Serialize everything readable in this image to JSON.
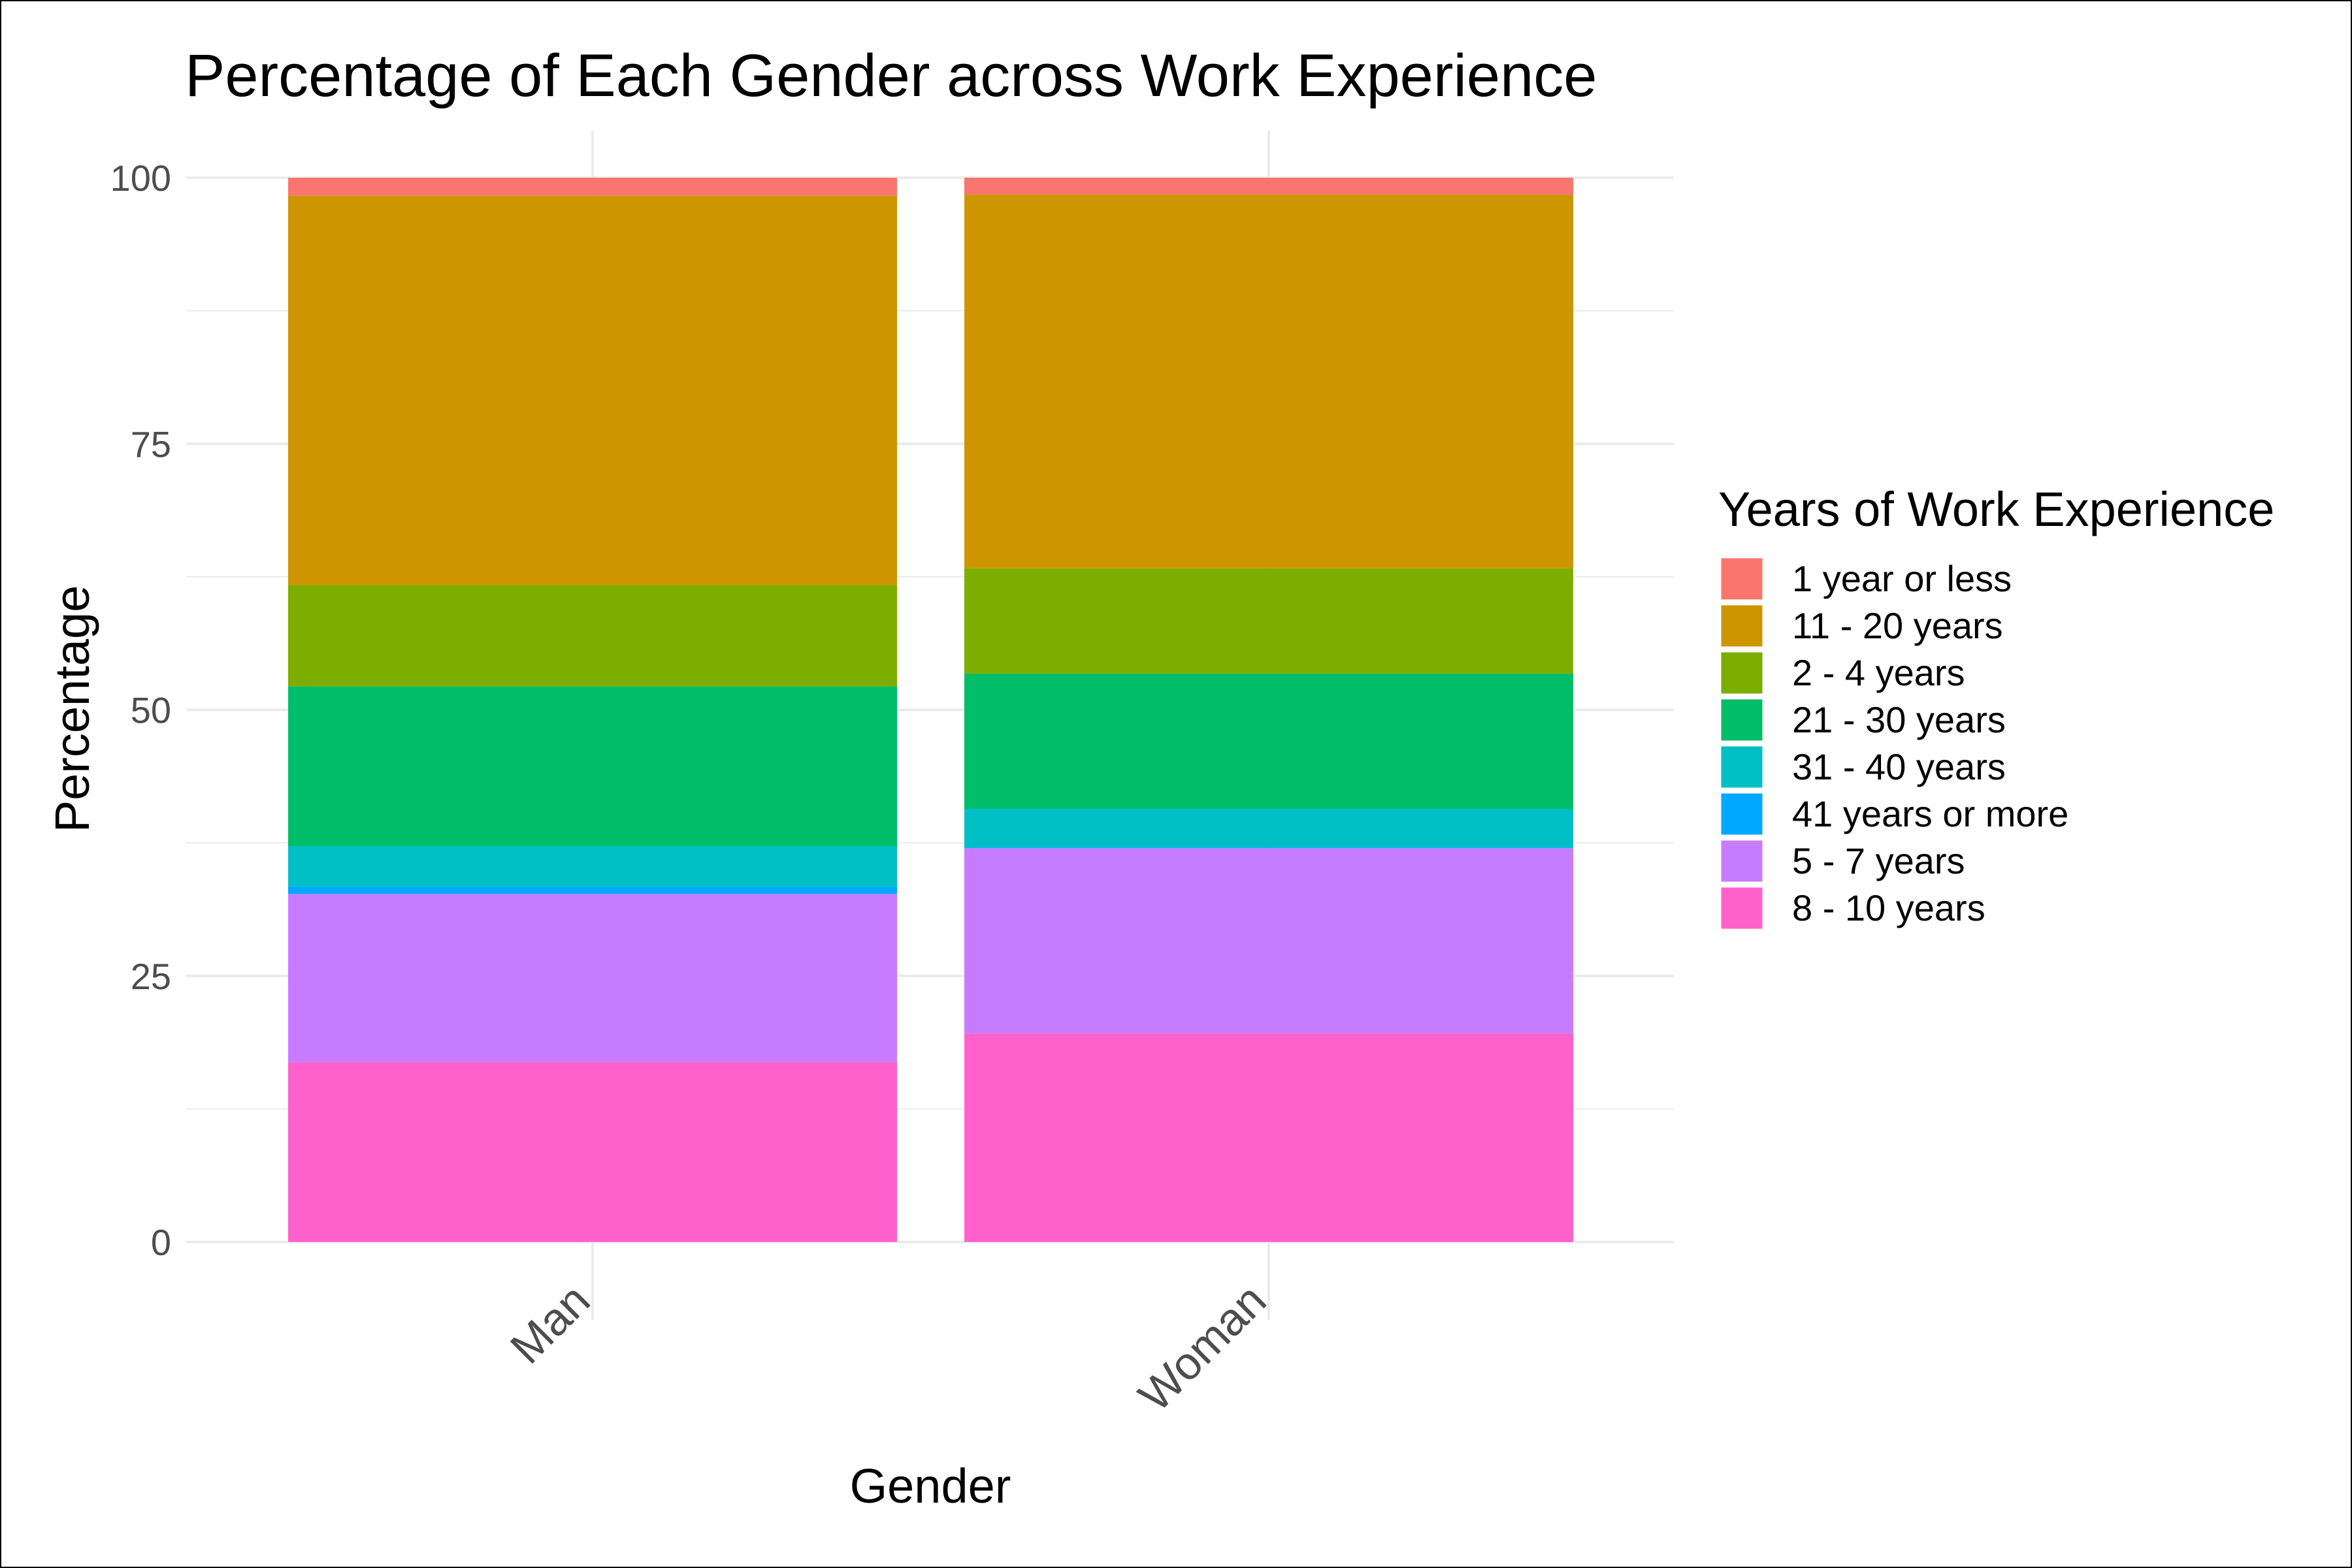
{
  "chart_data": {
    "type": "bar",
    "stacked": true,
    "title": "Percentage of Each Gender across Work Experience",
    "xlabel": "Gender",
    "ylabel": "Percentage",
    "ylim": [
      0,
      100
    ],
    "yticks": [
      0,
      25,
      50,
      75,
      100
    ],
    "grid": true,
    "legend_position": "right",
    "legend_title": "Years of Work Experience",
    "categories": [
      "Man",
      "Woman"
    ],
    "series": [
      {
        "name": "8 - 10 years",
        "color": "#FF61CC",
        "values": [
          16.9,
          19.6
        ]
      },
      {
        "name": "5 - 7 years",
        "color": "#C77CFF",
        "values": [
          15.8,
          17.4
        ]
      },
      {
        "name": "41 years or more",
        "color": "#00A9FF",
        "values": [
          0.7,
          0.1
        ]
      },
      {
        "name": "31 - 40 years",
        "color": "#00BFC4",
        "values": [
          3.8,
          3.6
        ]
      },
      {
        "name": "21 - 30 years",
        "color": "#00BE67",
        "values": [
          15.0,
          12.7
        ]
      },
      {
        "name": "2 - 4 years",
        "color": "#7CAE00",
        "values": [
          9.5,
          9.9
        ]
      },
      {
        "name": "11 - 20 years",
        "color": "#CD9600",
        "values": [
          36.6,
          35.1
        ]
      },
      {
        "name": "1 year or less",
        "color": "#F8766D",
        "values": [
          1.7,
          1.6
        ]
      }
    ],
    "legend_order": [
      "1 year or less",
      "11 - 20 years",
      "2 - 4 years",
      "21 - 30 years",
      "31 - 40 years",
      "41 years or more",
      "5 - 7 years",
      "8 - 10 years"
    ]
  }
}
